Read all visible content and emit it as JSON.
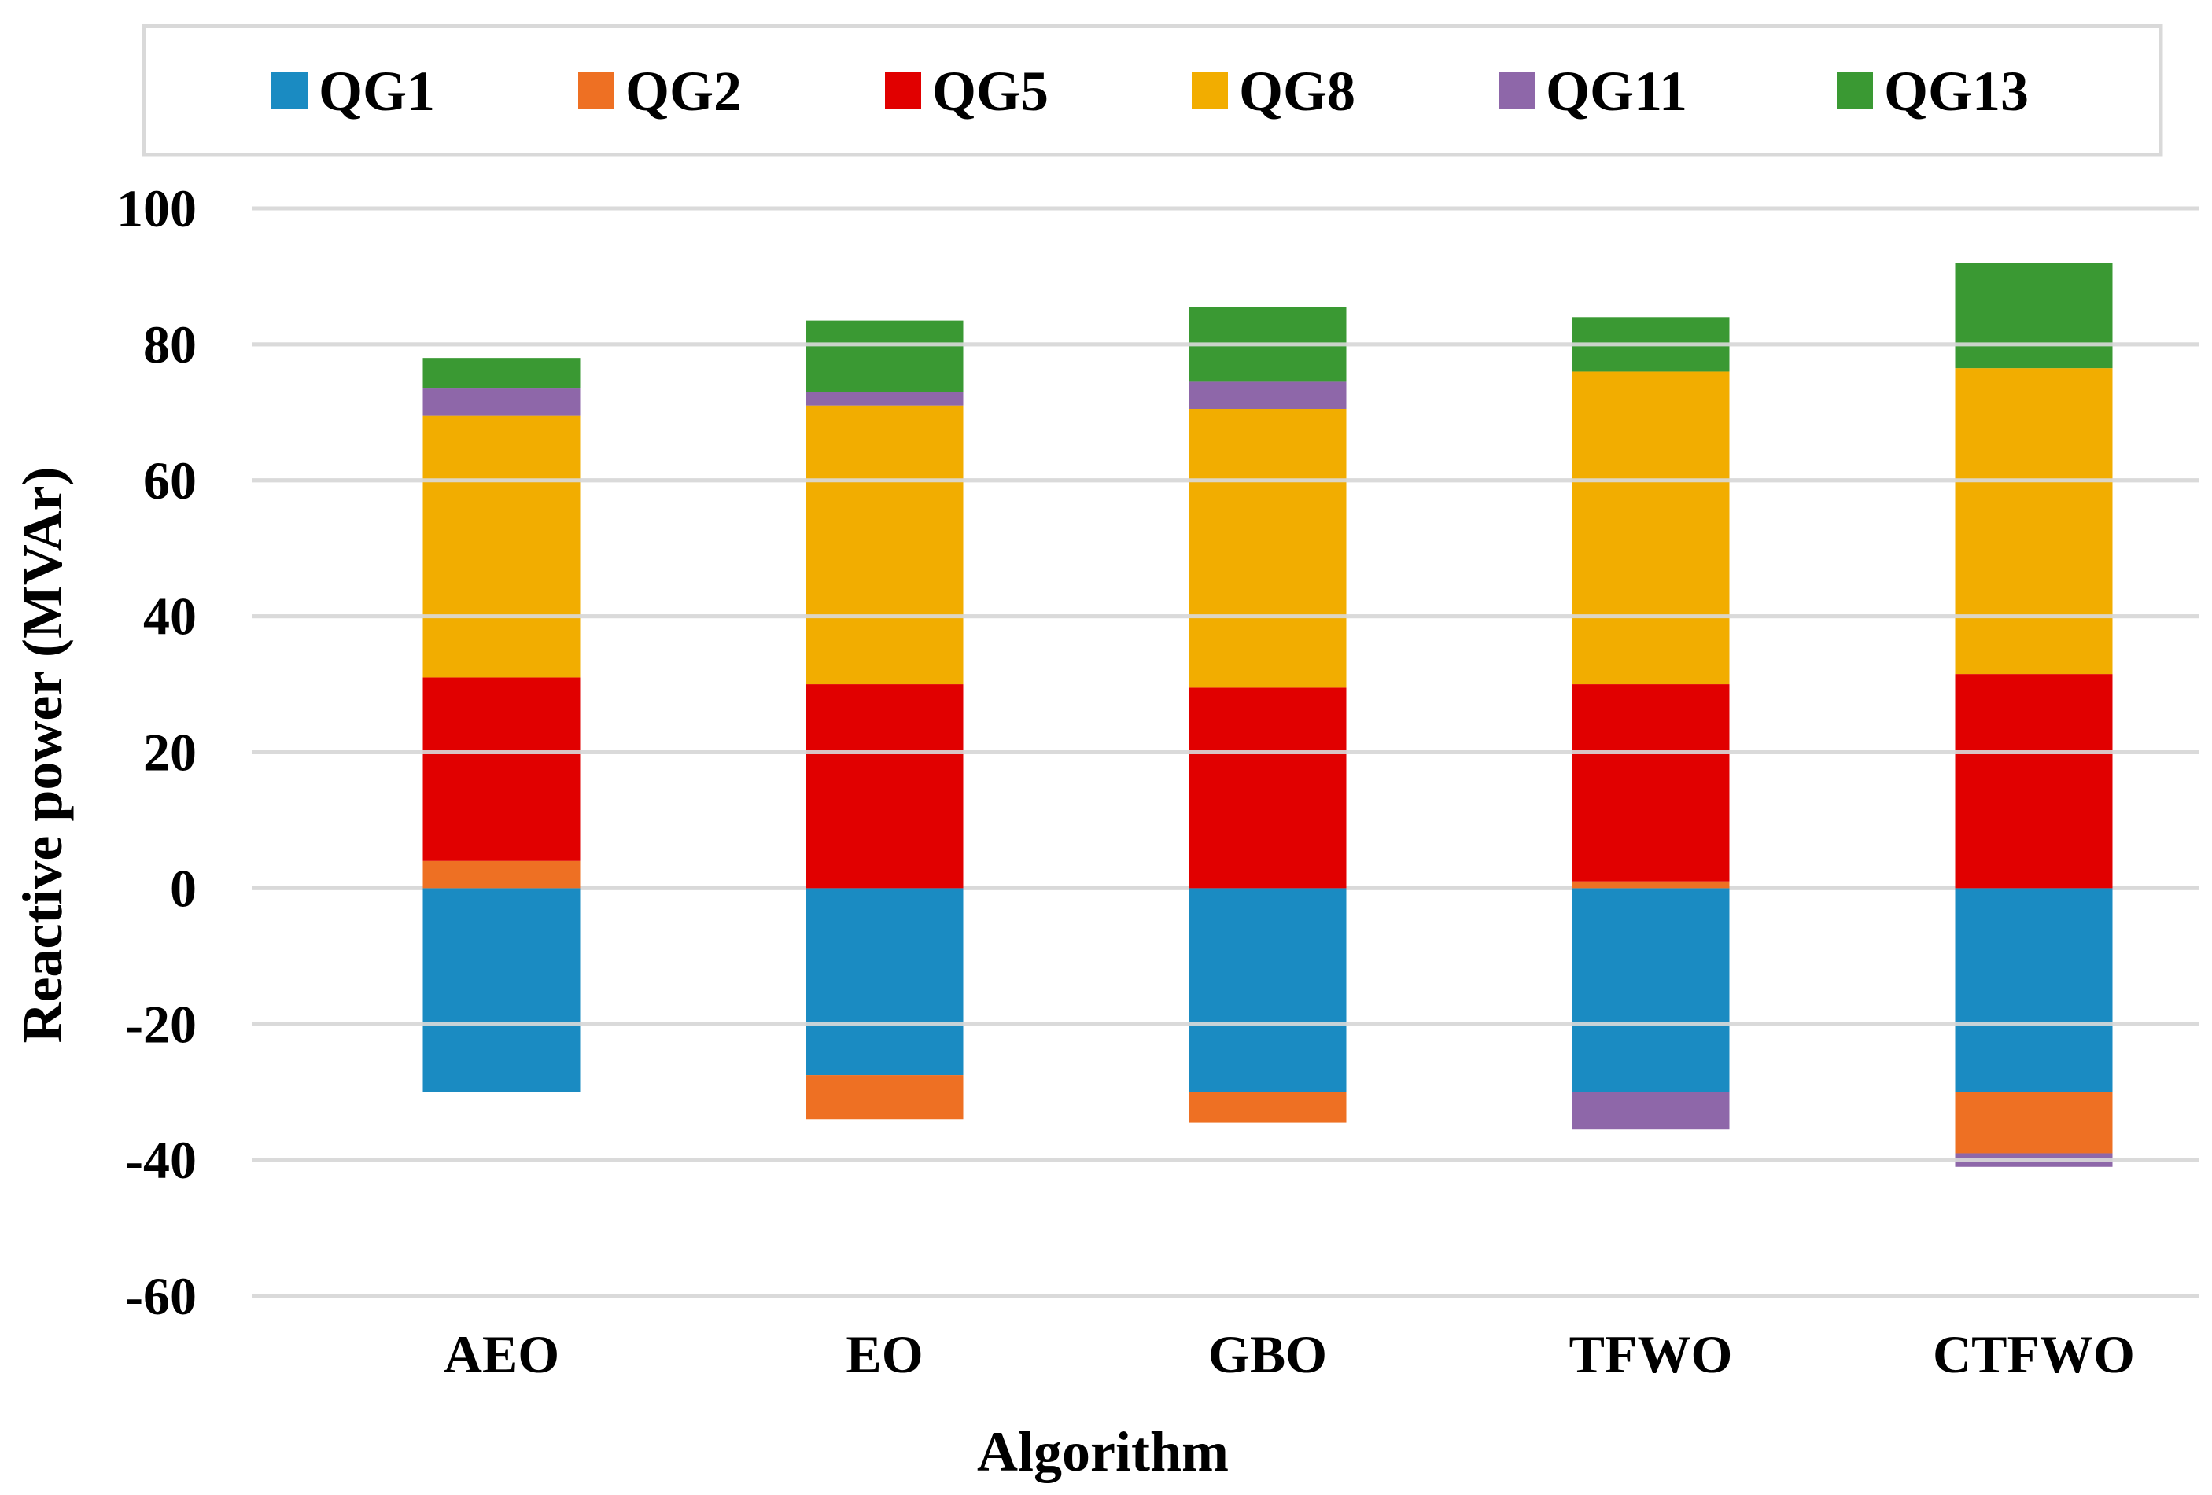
{
  "chart_data": {
    "type": "stacked-bar",
    "title": "",
    "xlabel": "Algorithm",
    "ylabel": "Reactive power (MVAr)",
    "ylim": [
      -60,
      100
    ],
    "ytick_step": 20,
    "yticks": [
      "100",
      "80",
      "60",
      "40",
      "20",
      "0",
      "-20",
      "-40",
      "-60"
    ],
    "grid": true,
    "legend_position": "top",
    "categories": [
      "AEO",
      "EO",
      "GBO",
      "TFWO",
      "CTFWO"
    ],
    "series": [
      {
        "name": "QG1",
        "color": "#1a8bc2",
        "values": [
          -30,
          -27.5,
          -30,
          -30,
          -30
        ]
      },
      {
        "name": "QG2",
        "color": "#ee7023",
        "values": [
          4,
          -6.5,
          -4.5,
          1,
          -9
        ]
      },
      {
        "name": "QG5",
        "color": "#e10000",
        "values": [
          27,
          30,
          29.5,
          29,
          31.5
        ]
      },
      {
        "name": "QG8",
        "color": "#f2ad00",
        "values": [
          38.5,
          41,
          41,
          46,
          45
        ]
      },
      {
        "name": "QG11",
        "color": "#8e67a9",
        "values": [
          4,
          2,
          4,
          -5.5,
          -2
        ]
      },
      {
        "name": "QG13",
        "color": "#3a9933",
        "values": [
          4.5,
          10.5,
          11,
          8,
          15.5
        ]
      }
    ]
  }
}
